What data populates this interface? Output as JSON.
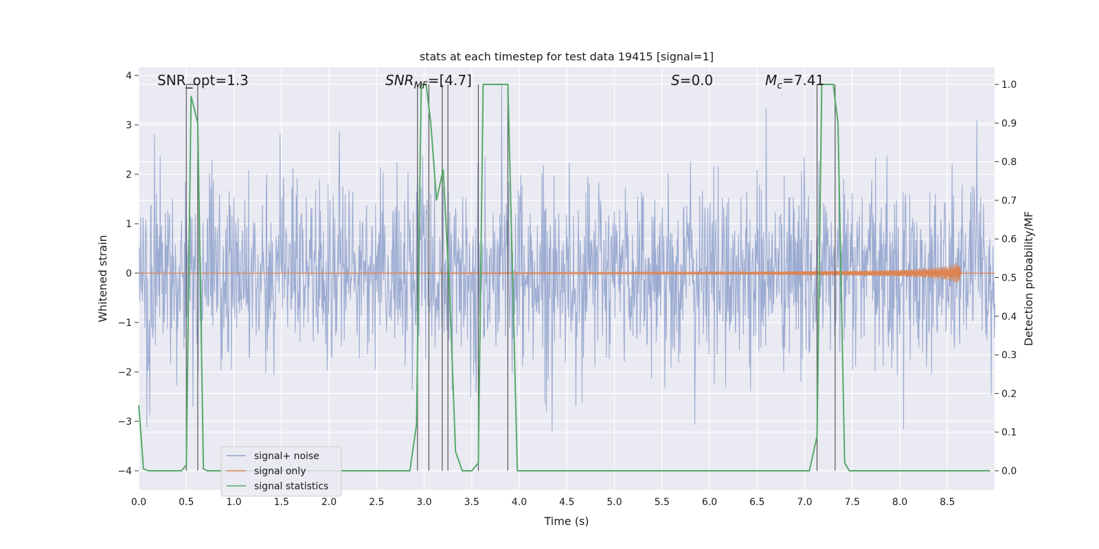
{
  "chart_data": {
    "type": "line",
    "title": "stats at each timestep for test data 19415 [signal=1]",
    "xlabel": "Time (s)",
    "ylabel": "Whitened strain",
    "ylabel_right": "Detection probability/MF",
    "xlim": [
      0.0,
      9.0
    ],
    "ylim_left": [
      -4.4,
      4.2
    ],
    "ylim_right": [
      -0.045,
      1.045
    ],
    "x_ticks": [
      "0.0",
      "0.5",
      "1.0",
      "1.5",
      "2.0",
      "2.5",
      "3.0",
      "3.5",
      "4.0",
      "4.5",
      "5.0",
      "5.5",
      "6.0",
      "6.5",
      "7.0",
      "7.5",
      "8.0",
      "8.5"
    ],
    "y_left_ticks": [
      "−4",
      "−3",
      "−2",
      "−1",
      "0",
      "1",
      "2",
      "3",
      "4"
    ],
    "y_right_ticks": [
      "0.0",
      "0.1",
      "0.2",
      "0.3",
      "0.4",
      "0.5",
      "0.6",
      "0.7",
      "0.8",
      "0.9",
      "1.0"
    ],
    "grid": true,
    "legend_location": "lower-left",
    "annotations": {
      "snr_opt": "SNR_opt=1.3",
      "snr_mf_main": "SNR",
      "snr_mf_sub": "MF",
      "snr_mf_value": "=[4.7]",
      "s_main": "S",
      "s_value": "=0.0",
      "mc_main": "M",
      "mc_sub": "c",
      "mc_value": "=7.41"
    },
    "series": [
      {
        "name": "signal+ noise",
        "color": "#8da0cb",
        "axis": "left",
        "description_values": "whitened noise, std ~1, peaks up to about +3.8 and down to about -4.0"
      },
      {
        "name": "signal only",
        "color": "#dd8452",
        "axis": "left",
        "envelope": {
          "x": [
            0.0,
            6.0,
            7.0,
            7.5,
            8.0,
            8.3,
            8.5,
            8.62,
            8.65
          ],
          "amp": [
            0.0,
            0.02,
            0.04,
            0.05,
            0.07,
            0.1,
            0.14,
            0.22,
            0.0
          ]
        }
      },
      {
        "name": "signal statistics",
        "color": "#55a868",
        "axis": "right",
        "x": [
          0.0,
          0.05,
          0.1,
          0.45,
          0.5,
          0.55,
          0.62,
          0.68,
          0.72,
          2.85,
          2.92,
          2.97,
          3.02,
          3.07,
          3.13,
          3.2,
          3.27,
          3.33,
          3.4,
          3.5,
          3.57,
          3.62,
          3.88,
          3.92,
          3.98,
          7.05,
          7.13,
          7.18,
          7.3,
          7.35,
          7.42,
          7.47,
          8.95
        ],
        "values": [
          0.17,
          0.005,
          0.0,
          0.0,
          0.015,
          0.97,
          0.9,
          0.005,
          0.0,
          0.0,
          0.12,
          1.0,
          1.0,
          0.9,
          0.7,
          0.78,
          0.45,
          0.05,
          0.0,
          0.0,
          0.02,
          1.0,
          1.0,
          0.6,
          0.0,
          0.0,
          0.09,
          1.0,
          1.0,
          0.9,
          0.02,
          0.0,
          0.0
        ]
      }
    ],
    "vertical_lines": [
      0.5,
      0.62,
      2.93,
      3.05,
      3.19,
      3.25,
      3.57,
      3.88,
      7.13,
      7.32
    ]
  }
}
